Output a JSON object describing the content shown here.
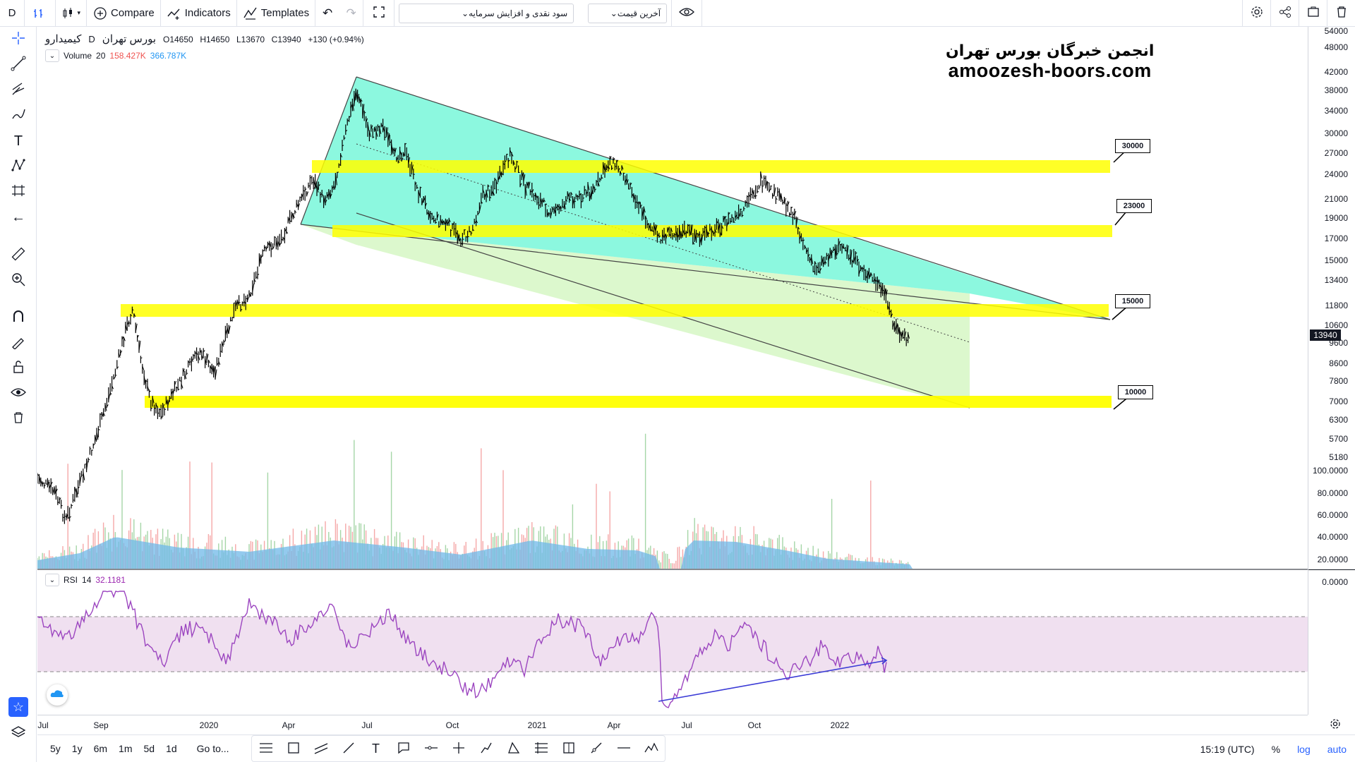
{
  "toolbar": {
    "interval": "D",
    "compare": "Compare",
    "indicators": "Indicators",
    "templates": "Templates",
    "strategy_select": "سود نقدی و افزایش سرمایه",
    "price_select": "آخرین قیمت"
  },
  "legend": {
    "symbol": "کیمیدارو",
    "interval": "D",
    "exchange": "بورس تهران",
    "open": "O14650",
    "high": "H14650",
    "low": "L13670",
    "close": "C13940",
    "change": "+130 (+0.94%)"
  },
  "volume_legend": {
    "name": "Volume",
    "length": "20",
    "value1": "158.427K",
    "value2": "366.787K"
  },
  "rsi_legend": {
    "name": "RSI",
    "length": "14",
    "value": "32.1181"
  },
  "watermark": {
    "line1": "انجمن خبرگان بورس تهران",
    "line2": "amoozesh-boors.com"
  },
  "level_labels": [
    "30000",
    "23000",
    "15000",
    "10000"
  ],
  "price_scale": {
    "ticks": [
      "54000",
      "48000",
      "42000",
      "38000",
      "34000",
      "30000",
      "27000",
      "24000",
      "21000",
      "19000",
      "17000",
      "15000",
      "13400",
      "11800",
      "10600",
      "9600",
      "8600",
      "7800",
      "7000",
      "6300",
      "5700",
      "5180"
    ],
    "last_price": "13940",
    "rsi_ticks": [
      "100.0000",
      "80.0000",
      "60.0000",
      "40.0000",
      "20.0000",
      "0.0000"
    ]
  },
  "time_scale": [
    "Jul",
    "Sep",
    "2020",
    "Apr",
    "Jul",
    "Oct",
    "2021",
    "Apr",
    "Jul",
    "Oct",
    "2022"
  ],
  "bottom": {
    "ranges": [
      "5y",
      "1y",
      "6m",
      "1m",
      "5d",
      "1d"
    ],
    "goto": "Go to...",
    "clock": "15:19 (UTC)",
    "percent": "%",
    "log": "log",
    "auto": "auto"
  },
  "colors": {
    "zone_yellow": "#ffff00",
    "channel_cyan": "#7ff7dc",
    "channel_light": "#d8f7c8",
    "rsi_band": "#f0e0f0",
    "rsi_line": "#9c46c0",
    "trend_blue": "#3b3bd6",
    "volume_blue": "#6fb8e8"
  }
}
